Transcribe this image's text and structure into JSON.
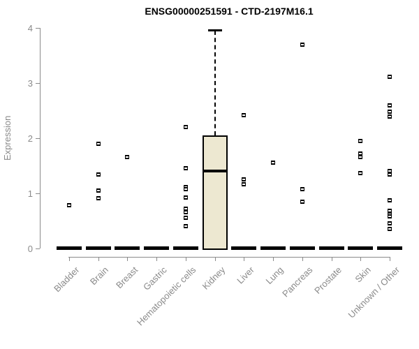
{
  "title": "ENSG00000251591 - CTD-2197M16.1",
  "chart_data": {
    "type": "boxplot",
    "title": "ENSG00000251591 - CTD-2197M16.1",
    "xlabel": "",
    "ylabel": "Expression",
    "ylim": [
      0,
      4
    ],
    "yticks": [
      0,
      1,
      2,
      3,
      4
    ],
    "grid": false,
    "legend": false,
    "categories": [
      "Bladder",
      "Brain",
      "Breast",
      "Gastric",
      "Hematopoietic cells",
      "Kidney",
      "Liver",
      "Lung",
      "Pancreas",
      "Prostate",
      "Skin",
      "Unknown / Other"
    ],
    "boxes": [
      {
        "category": "Bladder",
        "q1": 0,
        "median": 0,
        "q3": 0,
        "whisker_low": 0,
        "whisker_high": 0,
        "outliers": [
          0.78
        ]
      },
      {
        "category": "Brain",
        "q1": 0,
        "median": 0,
        "q3": 0,
        "whisker_low": 0,
        "whisker_high": 0,
        "outliers": [
          1.9,
          1.34,
          1.05,
          0.91
        ]
      },
      {
        "category": "Breast",
        "q1": 0,
        "median": 0,
        "q3": 0,
        "whisker_low": 0,
        "whisker_high": 0,
        "outliers": [
          1.66
        ]
      },
      {
        "category": "Gastric",
        "q1": 0,
        "median": 0,
        "q3": 0,
        "whisker_low": 0,
        "whisker_high": 0,
        "outliers": []
      },
      {
        "category": "Hematopoietic cells",
        "q1": 0,
        "median": 0,
        "q3": 0,
        "whisker_low": 0,
        "whisker_high": 0,
        "outliers": [
          2.2,
          1.45,
          1.12,
          1.08,
          0.92,
          0.72,
          0.66,
          0.56,
          0.4
        ]
      },
      {
        "category": "Kidney",
        "q1": 0,
        "median": 1.4,
        "q3": 2.05,
        "whisker_low": 0,
        "whisker_high": 3.95,
        "outliers": []
      },
      {
        "category": "Liver",
        "q1": 0,
        "median": 0,
        "q3": 0,
        "whisker_low": 0,
        "whisker_high": 0,
        "outliers": [
          2.42,
          1.25,
          1.16
        ]
      },
      {
        "category": "Lung",
        "q1": 0,
        "median": 0,
        "q3": 0,
        "whisker_low": 0,
        "whisker_high": 0,
        "outliers": [
          1.56
        ]
      },
      {
        "category": "Pancreas",
        "q1": 0,
        "median": 0,
        "q3": 0,
        "whisker_low": 0,
        "whisker_high": 0,
        "outliers": [
          3.7,
          1.08,
          0.85
        ]
      },
      {
        "category": "Prostate",
        "q1": 0,
        "median": 0,
        "q3": 0,
        "whisker_low": 0,
        "whisker_high": 0,
        "outliers": []
      },
      {
        "category": "Skin",
        "q1": 0,
        "median": 0,
        "q3": 0,
        "whisker_low": 0,
        "whisker_high": 0,
        "outliers": [
          1.95,
          1.72,
          1.66,
          1.37
        ]
      },
      {
        "category": "Unknown / Other",
        "q1": 0,
        "median": 0,
        "q3": 0,
        "whisker_low": 0,
        "whisker_high": 0,
        "outliers": [
          3.12,
          2.6,
          2.48,
          2.39,
          1.4,
          1.34,
          0.87,
          0.68,
          0.62,
          0.58,
          0.46,
          0.35
        ]
      }
    ],
    "colors": {
      "box_fill": "#ede8d1",
      "box_border": "#000000",
      "median": "#000000",
      "marker": "#000000",
      "axis": "#8a8a8a",
      "title_text": "#000000"
    }
  }
}
